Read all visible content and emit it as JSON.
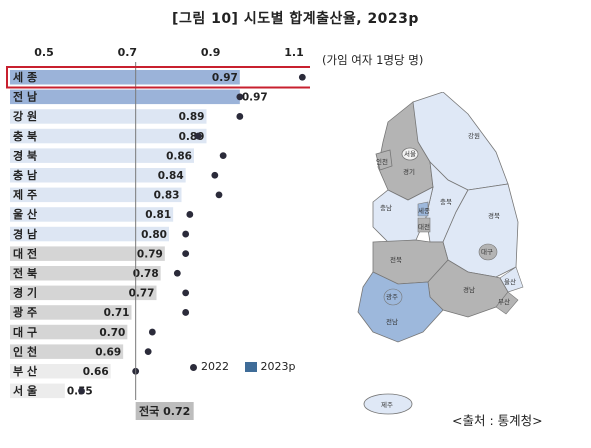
{
  "title": "[그림 10] 시도별 합계출산율, 2023p",
  "unit_note": "(가임 여자 1명당 명)",
  "source": "<출처 : 통계청>",
  "legend": {
    "dot_label": "2022",
    "bar_label": "2023p"
  },
  "national": {
    "label": "전국 0.72",
    "value": 0.72
  },
  "colors": {
    "bar_blue": "#b7c9e6",
    "bar_blue_top": "#9bb3d9",
    "bar_light": "#dde6f3",
    "bar_gray": "#d5d5d5",
    "bar_lightgray": "#ececec",
    "dot": "#2b2b3a",
    "highlight": "#c8202f",
    "map_gray": "#b4b4b4",
    "map_blue": "#dfe8f6",
    "map_darkblue": "#9db8dc"
  },
  "chart_data": {
    "type": "bar",
    "orientation": "horizontal",
    "categories": [
      "세 종",
      "전 남",
      "강 원",
      "충 북",
      "경 북",
      "충 남",
      "제 주",
      "울 산",
      "경 남",
      "대 전",
      "전 북",
      "경 기",
      "광 주",
      "대 구",
      "인 천",
      "부 산",
      "서 울"
    ],
    "series": [
      {
        "name": "2023p",
        "values": [
          0.97,
          0.97,
          0.89,
          0.89,
          0.86,
          0.84,
          0.83,
          0.81,
          0.8,
          0.79,
          0.78,
          0.77,
          0.71,
          0.7,
          0.69,
          0.66,
          0.55
        ]
      },
      {
        "name": "2022",
        "values": [
          1.12,
          0.97,
          0.97,
          0.87,
          0.93,
          0.91,
          0.92,
          0.85,
          0.84,
          0.84,
          0.82,
          0.84,
          0.84,
          0.76,
          0.75,
          0.72,
          0.59
        ]
      }
    ],
    "x_ticks": [
      0.5,
      0.7,
      0.9,
      1.1
    ],
    "xlim": [
      0.5,
      1.1
    ],
    "highlight_category": "세 종"
  },
  "map": {
    "regions": [
      "강원",
      "서울",
      "인천",
      "경기",
      "충북",
      "충남",
      "세종",
      "대전",
      "경북",
      "대구",
      "전북",
      "울산",
      "경남",
      "부산",
      "광주",
      "전남",
      "제주"
    ]
  }
}
